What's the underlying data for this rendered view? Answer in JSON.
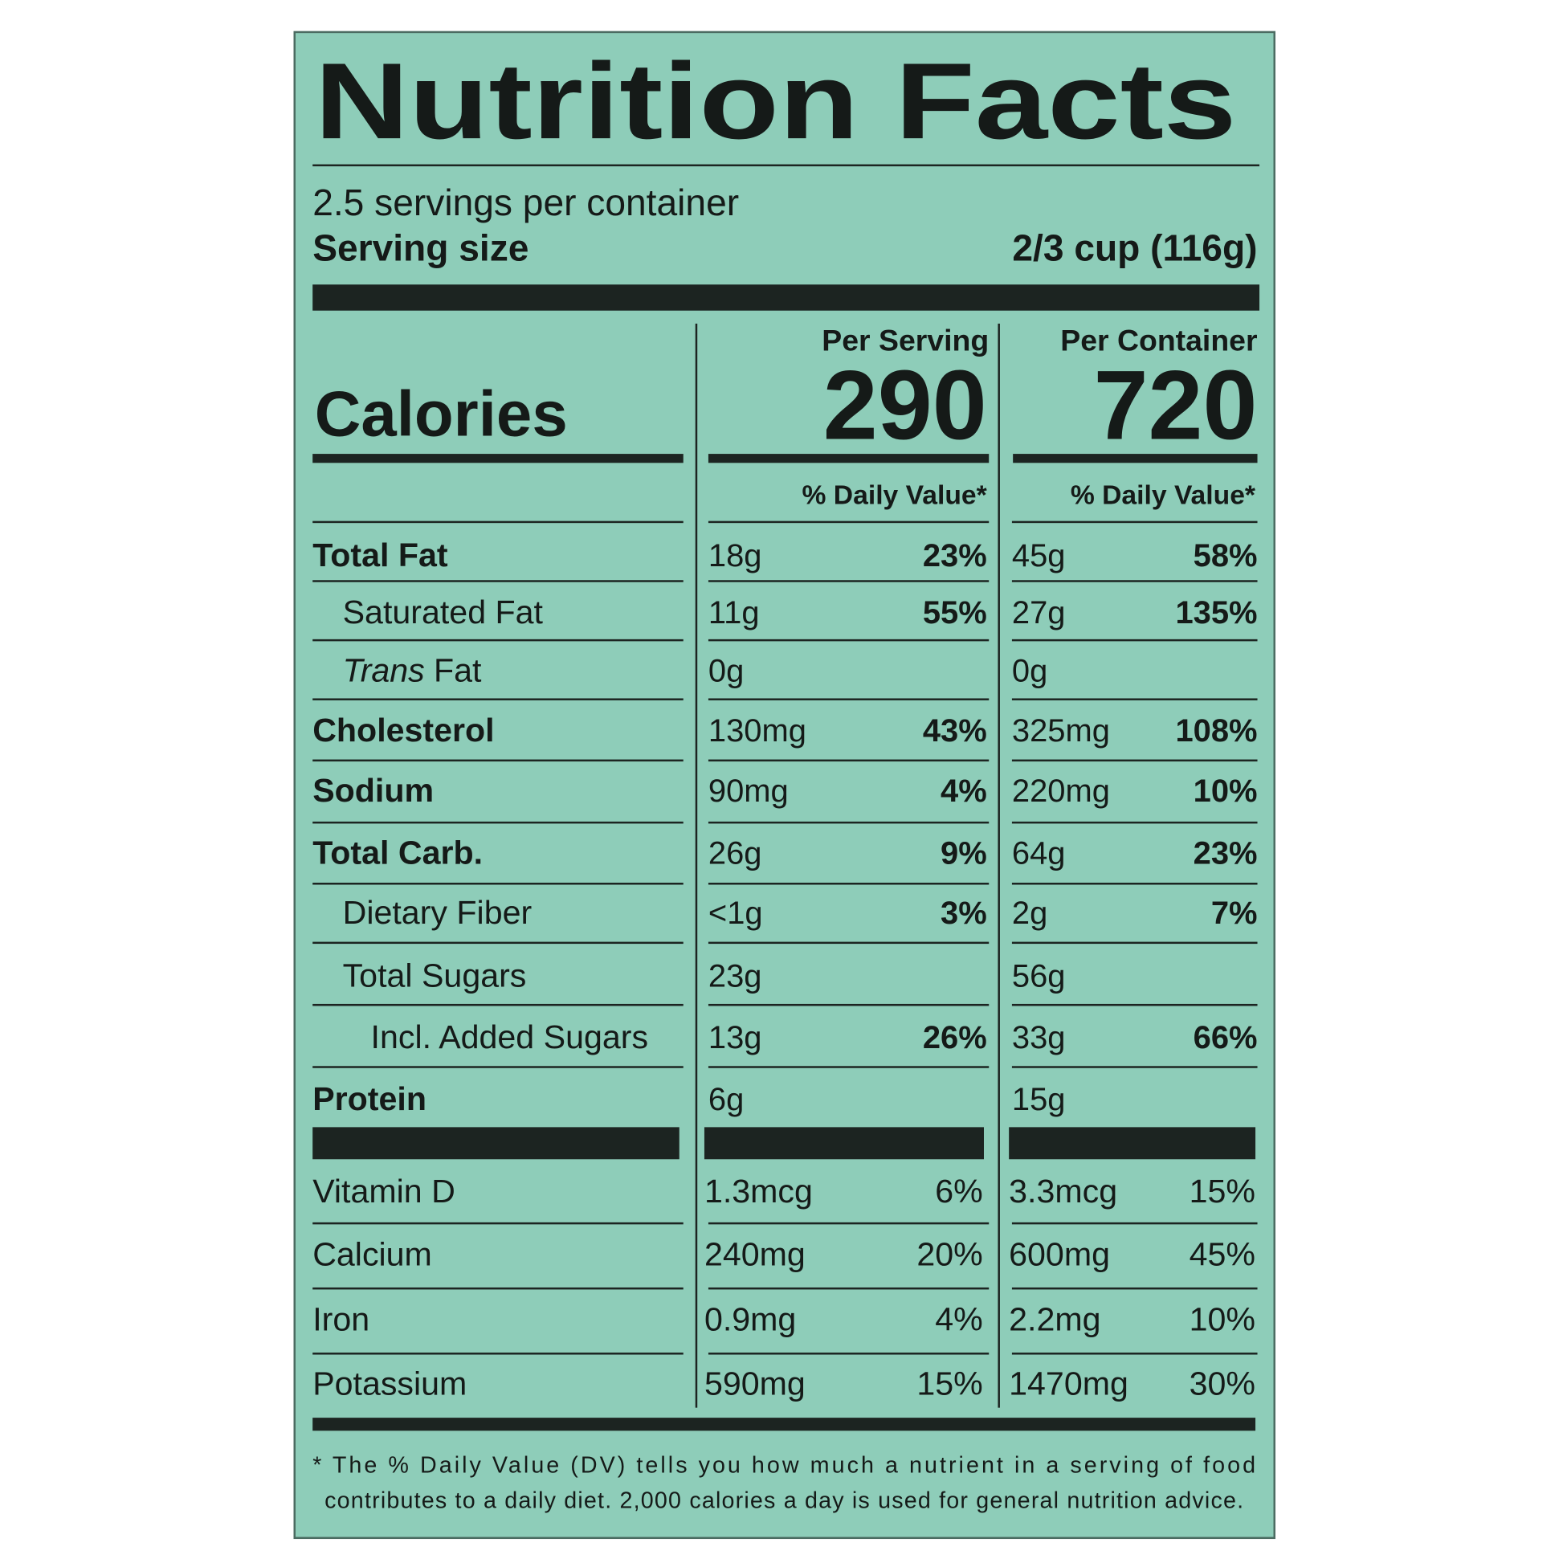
{
  "title": "Nutrition Facts",
  "servings_per_container": "2.5 servings per container",
  "serving_size": {
    "label": "Serving size",
    "value": "2/3 cup (116g)"
  },
  "columns": [
    "Per Serving",
    "Per Container"
  ],
  "calories": {
    "label": "Calories",
    "values": [
      "290",
      "720"
    ]
  },
  "dv_headers": [
    "% Daily Value*",
    "% Daily Value*"
  ],
  "nutrients": [
    {
      "name": "Total Fat",
      "style": "main",
      "serving": {
        "amount": "18g",
        "dv": "23%"
      },
      "container": {
        "amount": "45g",
        "dv": "58%"
      }
    },
    {
      "name": "Saturated Fat",
      "style": "sub",
      "serving": {
        "amount": "11g",
        "dv": "55%"
      },
      "container": {
        "amount": "27g",
        "dv": "135%"
      }
    },
    {
      "italic_prefix": "Trans",
      "name": "Fat",
      "style": "sub",
      "serving": {
        "amount": "0g"
      },
      "container": {
        "amount": "0g"
      }
    },
    {
      "name": "Cholesterol",
      "style": "main",
      "serving": {
        "amount": "130mg",
        "dv": "43%"
      },
      "container": {
        "amount": "325mg",
        "dv": "108%"
      }
    },
    {
      "name": "Sodium",
      "style": "main",
      "serving": {
        "amount": "90mg",
        "dv": "4%"
      },
      "container": {
        "amount": "220mg",
        "dv": "10%"
      }
    },
    {
      "name": "Total Carb.",
      "style": "main",
      "serving": {
        "amount": "26g",
        "dv": "9%"
      },
      "container": {
        "amount": "64g",
        "dv": "23%"
      }
    },
    {
      "name": "Dietary Fiber",
      "style": "sub",
      "serving": {
        "amount": "<1g",
        "dv": "3%"
      },
      "container": {
        "amount": "2g",
        "dv": "7%"
      }
    },
    {
      "name": "Total Sugars",
      "style": "sub",
      "serving": {
        "amount": "23g"
      },
      "container": {
        "amount": "56g"
      }
    },
    {
      "name": "Incl. Added Sugars",
      "style": "subsub",
      "serving": {
        "amount": "13g",
        "dv": "26%"
      },
      "container": {
        "amount": "33g",
        "dv": "66%"
      }
    },
    {
      "name": "Protein",
      "style": "main",
      "serving": {
        "amount": "6g"
      },
      "container": {
        "amount": "15g"
      }
    }
  ],
  "vitamins": [
    {
      "name": "Vitamin D",
      "serving": {
        "amount": "1.3mcg",
        "dv": "6%"
      },
      "container": {
        "amount": "3.3mcg",
        "dv": "15%"
      }
    },
    {
      "name": "Calcium",
      "serving": {
        "amount": "240mg",
        "dv": "20%"
      },
      "container": {
        "amount": "600mg",
        "dv": "45%"
      }
    },
    {
      "name": "Iron",
      "serving": {
        "amount": "0.9mg",
        "dv": "4%"
      },
      "container": {
        "amount": "2.2mg",
        "dv": "10%"
      }
    },
    {
      "name": "Potassium",
      "serving": {
        "amount": "590mg",
        "dv": "15%"
      },
      "container": {
        "amount": "1470mg",
        "dv": "30%"
      }
    }
  ],
  "footnote": [
    "* The % Daily Value (DV) tells you how much a nutrient in a serving of food",
    "contributes to a daily diet. 2,000 calories a day is used for general nutrition advice."
  ]
}
